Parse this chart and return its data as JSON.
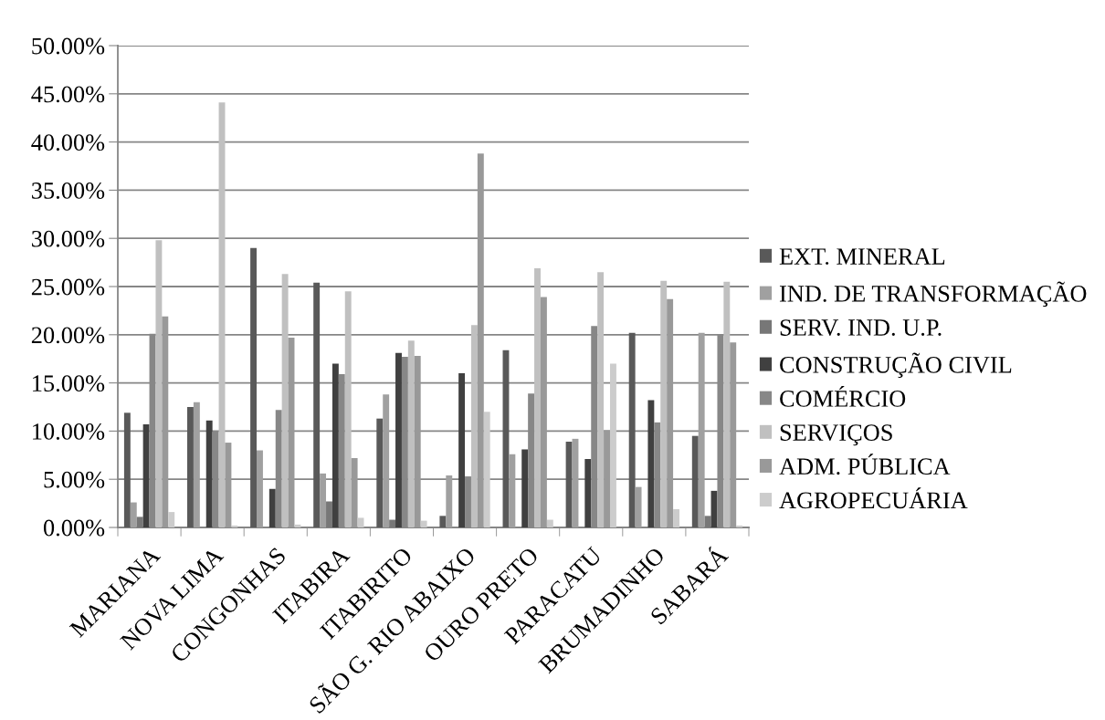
{
  "chart_data": {
    "type": "bar",
    "categories": [
      "MARIANA",
      "NOVA LIMA",
      "CONGONHAS",
      "ITABIRA",
      "ITABIRITO",
      "SÃO G. RIO ABAIXO",
      "OURO PRETO",
      "PARACATU",
      "BRUMADINHO",
      "SABARÁ"
    ],
    "series": [
      {
        "name": "EXT. MINERAL",
        "color": "#595959",
        "values": [
          11.9,
          12.5,
          29.0,
          25.4,
          11.3,
          1.2,
          18.4,
          8.9,
          20.2,
          9.5
        ]
      },
      {
        "name": "IND. DE TRANSFORMAÇÃO",
        "color": "#a0a0a0",
        "values": [
          2.6,
          13.0,
          8.0,
          5.6,
          13.8,
          5.4,
          7.6,
          9.2,
          4.2,
          20.2
        ]
      },
      {
        "name": "SERV. IND. U.P.",
        "color": "#777777",
        "values": [
          1.1,
          null,
          null,
          2.7,
          0.8,
          null,
          null,
          null,
          null,
          1.2
        ]
      },
      {
        "name": "CONSTRUÇÃO CIVIL",
        "color": "#404040",
        "values": [
          10.7,
          11.1,
          4.0,
          17.0,
          18.1,
          16.0,
          8.1,
          7.1,
          13.2,
          3.8
        ]
      },
      {
        "name": "COMÉRCIO",
        "color": "#878787",
        "values": [
          20.1,
          10.0,
          12.2,
          15.9,
          17.7,
          5.3,
          13.9,
          20.9,
          10.9,
          20.0
        ]
      },
      {
        "name": "SERVIÇOS",
        "color": "#c0c0c0",
        "values": [
          29.8,
          44.1,
          26.3,
          24.5,
          19.4,
          21.0,
          26.9,
          26.5,
          25.6,
          25.5
        ]
      },
      {
        "name": "ADM. PÚBLICA",
        "color": "#999999",
        "values": [
          21.9,
          8.8,
          19.7,
          7.2,
          17.8,
          38.8,
          23.9,
          10.1,
          23.7,
          19.2
        ]
      },
      {
        "name": "AGROPECUÁRIA",
        "color": "#cccccc",
        "values": [
          1.6,
          0.2,
          0.3,
          1.0,
          0.7,
          12.0,
          0.8,
          17.0,
          1.9,
          0.2
        ]
      }
    ],
    "ylim": [
      0,
      50
    ],
    "yticks": [
      {
        "value": 0,
        "label": "0.00%"
      },
      {
        "value": 5,
        "label": "5.00%"
      },
      {
        "value": 10,
        "label": "10.00%"
      },
      {
        "value": 15,
        "label": "15.00%"
      },
      {
        "value": 20,
        "label": "20.00%"
      },
      {
        "value": 25,
        "label": "25.00%"
      },
      {
        "value": 30,
        "label": "30.00%"
      },
      {
        "value": 35,
        "label": "35.00%"
      },
      {
        "value": 40,
        "label": "40.00%"
      },
      {
        "value": 45,
        "label": "45.00%"
      },
      {
        "value": 50,
        "label": "50.00%"
      }
    ],
    "grid": "y",
    "legend": "right"
  }
}
